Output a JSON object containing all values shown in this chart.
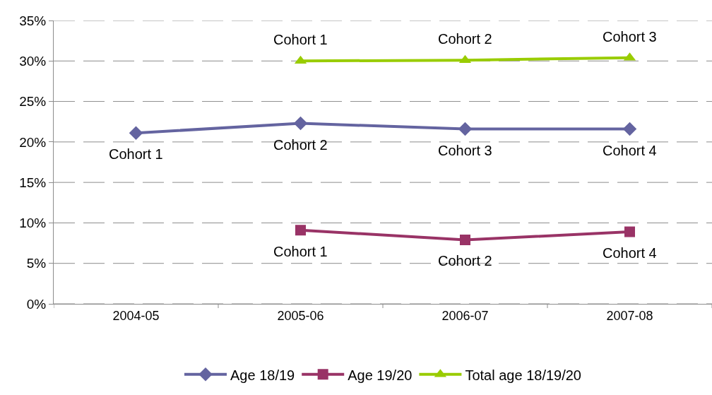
{
  "chart_data": {
    "type": "line",
    "categories": [
      "2004-05",
      "2005-06",
      "2006-07",
      "2007-08"
    ],
    "series": [
      {
        "name": "Age 18/19",
        "color": "#6464a0",
        "marker": "diamond",
        "values": [
          21.1,
          22.3,
          21.6,
          21.6
        ]
      },
      {
        "name": "Age 19/20",
        "color": "#993366",
        "marker": "square",
        "values": [
          null,
          9.1,
          7.9,
          8.9
        ]
      },
      {
        "name": "Total age 18/19/20",
        "color": "#99cc00",
        "marker": "triangle",
        "values": [
          null,
          30.0,
          30.1,
          30.4
        ]
      }
    ],
    "ylim": [
      0,
      35
    ],
    "yticks": [
      {
        "value": 0,
        "label": "0%"
      },
      {
        "value": 5,
        "label": "5%"
      },
      {
        "value": 10,
        "label": "10%"
      },
      {
        "value": 15,
        "label": "15%"
      },
      {
        "value": 20,
        "label": "20%"
      },
      {
        "value": 25,
        "label": "25%"
      },
      {
        "value": 30,
        "label": "30%"
      },
      {
        "value": 35,
        "label": "35%"
      }
    ],
    "grid": "y",
    "legend": "bottom",
    "line_style": "solid",
    "annotations": [
      {
        "text": "Cohort 1",
        "x": "2004-05",
        "y": 21.1
      },
      {
        "text": "Cohort 2",
        "x": "2005-06",
        "y": 22.3
      },
      {
        "text": "Cohort 3",
        "x": "2006-07",
        "y": 21.6
      },
      {
        "text": "Cohort 4",
        "x": "2007-08",
        "y": 21.6
      },
      {
        "text": "Cohort 1",
        "x": "2005-06",
        "y": 9.1
      },
      {
        "text": "Cohort 2",
        "x": "2006-07",
        "y": 7.9
      },
      {
        "text": "Cohort 4",
        "x": "2007-08",
        "y": 8.9
      },
      {
        "text": "Cohort 1",
        "x": "2005-06",
        "y": 30.0
      },
      {
        "text": "Cohort 2",
        "x": "2006-07",
        "y": 30.1
      },
      {
        "text": "Cohort 3",
        "x": "2007-08",
        "y": 30.4
      }
    ]
  }
}
